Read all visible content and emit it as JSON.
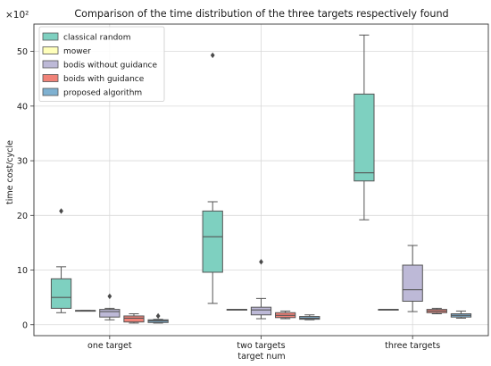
{
  "chart_data": {
    "type": "box",
    "title": "Comparison of the time distribution of the three targets respectively found",
    "xlabel": "target num",
    "ylabel": "time cost/cycle",
    "y_multiplier_label": "×10²",
    "ylim": [
      -2,
      55
    ],
    "yticks": [
      0,
      10,
      20,
      30,
      40,
      50
    ],
    "categories": [
      "one target",
      "two targets",
      "three targets"
    ],
    "grid": true,
    "legend_position": "top-left",
    "series": [
      {
        "name": "classical random",
        "color": "#7ed0c0",
        "boxes": [
          {
            "whislo": 2.2,
            "q1": 3.0,
            "med": 5.0,
            "q3": 8.4,
            "whishi": 10.6,
            "fliers": [
              20.8
            ]
          },
          {
            "whislo": 3.9,
            "q1": 9.6,
            "med": 16.1,
            "q3": 20.8,
            "whishi": 22.5,
            "fliers": [
              49.3
            ]
          },
          {
            "whislo": 19.2,
            "q1": 26.3,
            "med": 27.8,
            "q3": 42.2,
            "whishi": 53.0,
            "fliers": []
          }
        ]
      },
      {
        "name": "mower",
        "color": "#ffffbb",
        "boxes": [
          {
            "whislo": 2.6,
            "q1": 2.6,
            "med": 2.6,
            "q3": 2.6,
            "whishi": 2.6,
            "fliers": []
          },
          {
            "whislo": 2.8,
            "q1": 2.8,
            "med": 2.8,
            "q3": 2.8,
            "whishi": 2.8,
            "fliers": []
          },
          {
            "whislo": 2.8,
            "q1": 2.8,
            "med": 2.8,
            "q3": 2.8,
            "whishi": 2.8,
            "fliers": []
          }
        ]
      },
      {
        "name": "bodis without guidance",
        "color": "#bdb9d7",
        "boxes": [
          {
            "whislo": 0.9,
            "q1": 1.4,
            "med": 2.4,
            "q3": 2.8,
            "whishi": 3.0,
            "fliers": [
              5.2
            ]
          },
          {
            "whislo": 1.1,
            "q1": 1.8,
            "med": 2.7,
            "q3": 3.2,
            "whishi": 4.8,
            "fliers": [
              11.5
            ]
          },
          {
            "whislo": 2.4,
            "q1": 4.3,
            "med": 6.4,
            "q3": 10.9,
            "whishi": 14.5,
            "fliers": []
          }
        ]
      },
      {
        "name": "boids with guidance",
        "color": "#f08278",
        "boxes": [
          {
            "whislo": 0.3,
            "q1": 0.5,
            "med": 1.2,
            "q3": 1.6,
            "whishi": 2.0,
            "fliers": []
          },
          {
            "whislo": 1.1,
            "q1": 1.3,
            "med": 1.7,
            "q3": 2.2,
            "whishi": 2.5,
            "fliers": []
          },
          {
            "whislo": 2.0,
            "q1": 2.2,
            "med": 2.5,
            "q3": 2.8,
            "whishi": 3.0,
            "fliers": []
          }
        ]
      },
      {
        "name": "proposed algorithm",
        "color": "#7fb1d1",
        "boxes": [
          {
            "whislo": 0.3,
            "q1": 0.4,
            "med": 0.7,
            "q3": 0.9,
            "whishi": 1.0,
            "fliers": [
              1.6
            ]
          },
          {
            "whislo": 0.9,
            "q1": 1.0,
            "med": 1.2,
            "q3": 1.5,
            "whishi": 1.8,
            "fliers": []
          },
          {
            "whislo": 1.2,
            "q1": 1.4,
            "med": 1.7,
            "q3": 2.0,
            "whishi": 2.5,
            "fliers": []
          }
        ]
      }
    ]
  }
}
